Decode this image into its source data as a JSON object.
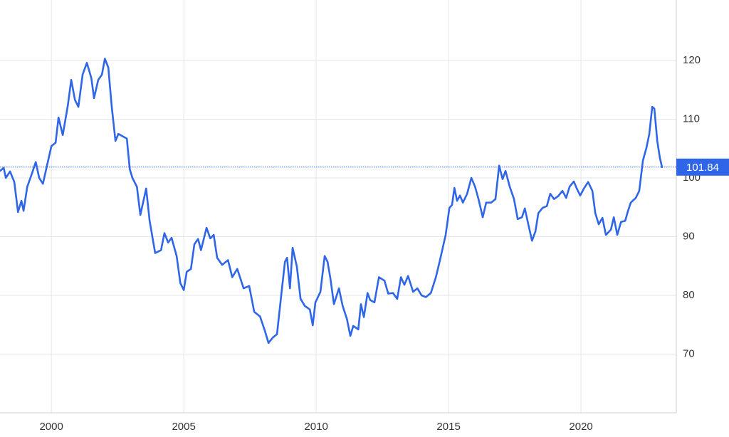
{
  "chart_data": {
    "type": "line",
    "x": [
      1998.06,
      1998.2,
      1998.28,
      1998.44,
      1998.6,
      1998.74,
      1998.87,
      1998.95,
      1999.09,
      1999.27,
      1999.41,
      1999.54,
      1999.68,
      1999.84,
      2000,
      2000.16,
      2000.27,
      2000.43,
      2000.62,
      2000.75,
      2000.89,
      2001.02,
      2001.18,
      2001.34,
      2001.51,
      2001.61,
      2001.77,
      2001.91,
      2002.02,
      2002.15,
      2002.28,
      2002.42,
      2002.53,
      2002.85,
      2002.96,
      2003.06,
      2003.23,
      2003.36,
      2003.58,
      2003.71,
      2003.92,
      2004.14,
      2004.27,
      2004.41,
      2004.54,
      2004.73,
      2004.87,
      2005,
      2005.11,
      2005.27,
      2005.4,
      2005.54,
      2005.65,
      2005.86,
      2006,
      2006.13,
      2006.26,
      2006.45,
      2006.67,
      2006.83,
      2007.02,
      2007.26,
      2007.47,
      2007.66,
      2007.88,
      2008.06,
      2008.2,
      2008.36,
      2008.52,
      2008.68,
      2008.82,
      2008.9,
      2009.01,
      2009.11,
      2009.27,
      2009.41,
      2009.57,
      2009.76,
      2009.87,
      2009.97,
      2010.16,
      2010.32,
      2010.43,
      2010.54,
      2010.67,
      2010.86,
      2011,
      2011.16,
      2011.29,
      2011.4,
      2011.59,
      2011.69,
      2011.8,
      2011.94,
      2012.04,
      2012.2,
      2012.37,
      2012.58,
      2012.72,
      2012.9,
      2013.06,
      2013.2,
      2013.33,
      2013.47,
      2013.66,
      2013.82,
      2013.98,
      2014.14,
      2014.33,
      2014.52,
      2014.68,
      2014.89,
      2015.03,
      2015.13,
      2015.22,
      2015.32,
      2015.43,
      2015.54,
      2015.7,
      2015.86,
      2016,
      2016.13,
      2016.29,
      2016.42,
      2016.61,
      2016.77,
      2016.91,
      2017.04,
      2017.15,
      2017.31,
      2017.47,
      2017.61,
      2017.77,
      2017.88,
      2018.01,
      2018.15,
      2018.28,
      2018.39,
      2018.55,
      2018.71,
      2018.84,
      2018.98,
      2019.14,
      2019.3,
      2019.44,
      2019.57,
      2019.73,
      2019.84,
      2019.97,
      2020.11,
      2020.27,
      2020.43,
      2020.54,
      2020.67,
      2020.81,
      2020.94,
      2021.13,
      2021.24,
      2021.37,
      2021.51,
      2021.67,
      2021.77,
      2021.88,
      2022.07,
      2022.2,
      2022.34,
      2022.47,
      2022.58,
      2022.69,
      2022.77,
      2022.88,
      2022.98,
      2023.06
    ],
    "series": [
      {
        "color": "#2f66e8",
        "values": [
          101.2,
          101.7,
          100,
          101.1,
          99.3,
          94.2,
          96.1,
          94.4,
          98.5,
          100.8,
          102.7,
          100,
          99,
          102.2,
          105.4,
          106,
          110.3,
          107.3,
          112.3,
          116.7,
          113.3,
          112.1,
          117.6,
          119.6,
          117,
          113.6,
          116.7,
          117.6,
          120.3,
          118.8,
          112.1,
          106.3,
          107.5,
          106.7,
          101.5,
          100,
          98.5,
          93.7,
          98.2,
          92.7,
          87.2,
          87.7,
          90.6,
          89,
          89.8,
          86.7,
          82.1,
          80.9,
          84,
          84.5,
          88.7,
          89.6,
          87.7,
          91.5,
          89.7,
          90.3,
          86.4,
          85.2,
          86,
          83.1,
          84.5,
          81.2,
          81.6,
          77.2,
          76.4,
          74,
          71.9,
          72.8,
          73.4,
          80,
          85.7,
          86.4,
          81.2,
          88.1,
          84.9,
          79.4,
          78.2,
          77.6,
          74.9,
          78.8,
          80.6,
          86.7,
          85.7,
          82.8,
          78.5,
          81.2,
          78.2,
          76,
          73.1,
          74.8,
          74.2,
          78.5,
          76.3,
          80.4,
          79.2,
          78.8,
          83.1,
          82.5,
          80.3,
          80.4,
          79.4,
          83.1,
          81.8,
          83.3,
          80.6,
          81.2,
          80,
          79.7,
          80.4,
          83.1,
          86.1,
          90.3,
          94.9,
          95.4,
          98.3,
          96.1,
          97,
          95.8,
          97.3,
          100,
          98.5,
          96.4,
          93.3,
          95.8,
          95.8,
          96.4,
          102.1,
          99.8,
          101.2,
          98.5,
          96.4,
          93,
          93.3,
          94.8,
          92.1,
          89.3,
          90.9,
          94,
          94.9,
          95.2,
          97.3,
          96.4,
          96.9,
          97.8,
          96.6,
          98.5,
          99.4,
          98.2,
          97,
          98.2,
          99.3,
          97.8,
          94,
          92.1,
          93.2,
          90.3,
          91.2,
          93.3,
          90.3,
          92.5,
          92.7,
          94.3,
          95.8,
          96.6,
          97.8,
          103,
          105.1,
          107.5,
          112.1,
          111.8,
          106.3,
          103.4,
          101.84
        ]
      }
    ],
    "xlim": [
      1998.06,
      2023.6
    ],
    "xticks": [
      2000,
      2005,
      2010,
      2015,
      2020
    ],
    "ylim": [
      60,
      130.3
    ],
    "yticks": [
      70,
      80,
      90,
      100,
      110,
      120
    ],
    "grid": true
  }
}
